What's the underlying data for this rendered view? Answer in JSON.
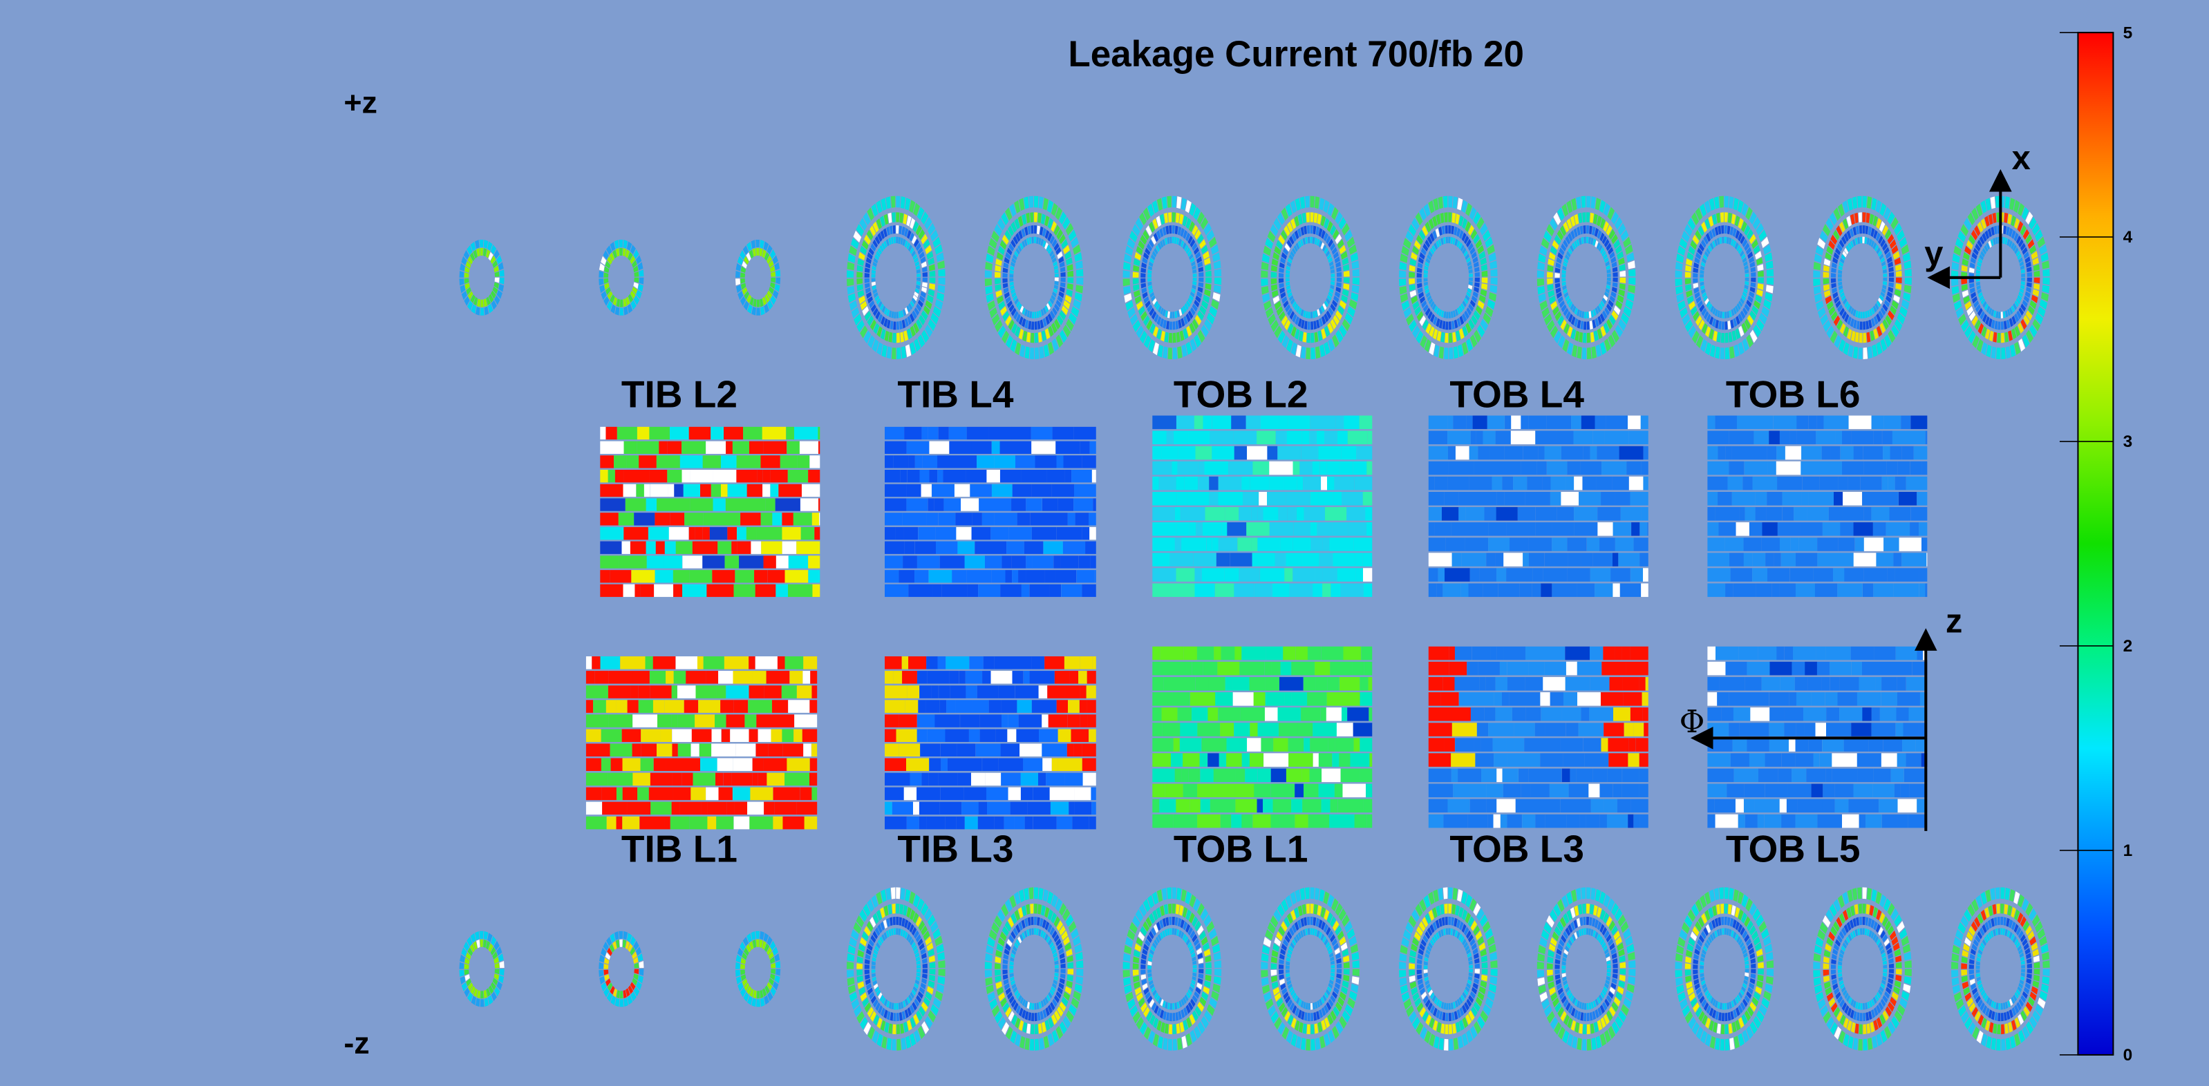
{
  "header": {
    "title": "Leakage Current 700/fb 20"
  },
  "side_labels": {
    "plus_z": "+z",
    "minus_z": "-z"
  },
  "layers": {
    "top": [
      "TIB L2",
      "TIB L4",
      "TOB L2",
      "TOB L4",
      "TOB L6"
    ],
    "bottom": [
      "TIB L1",
      "TIB L3",
      "TOB L1",
      "TOB L3",
      "TOB L5"
    ]
  },
  "axis_labels": {
    "x": "x",
    "y": "y",
    "z": "z",
    "phi": "Φ"
  },
  "colorbar": {
    "range": [
      0,
      5
    ],
    "ticks": [
      0,
      1,
      2,
      3,
      4,
      5
    ]
  }
}
